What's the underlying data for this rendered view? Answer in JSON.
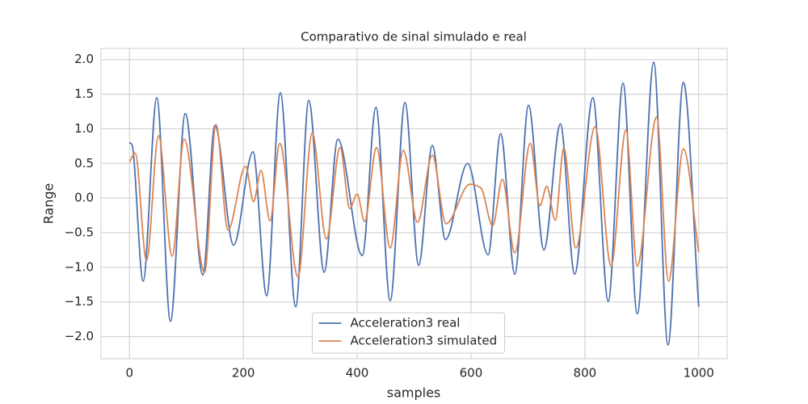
{
  "chart_data": {
    "type": "line",
    "title": "Comparativo de sinal simulado e real",
    "xlabel": "samples",
    "ylabel": "Range",
    "xlim": [
      -50,
      1050
    ],
    "ylim": [
      -2.32,
      2.16
    ],
    "xticks": [
      0,
      200,
      400,
      600,
      800,
      1000
    ],
    "yticks": [
      {
        "value": -2,
        "label": "−2.0"
      },
      {
        "value": -1.5,
        "label": "−1.5"
      },
      {
        "value": -1,
        "label": "−1.0"
      },
      {
        "value": -0.5,
        "label": "−0.5"
      },
      {
        "value": 0,
        "label": "0.0"
      },
      0.5,
      {
        "value": 1,
        "label": "1.0"
      },
      1.5,
      {
        "value": 2,
        "label": "2.0"
      }
    ],
    "grid": true,
    "legend": "lower center",
    "series": [
      {
        "name": "Acceleration3 real",
        "color": "#4c72b0",
        "x": [
          0,
          4,
          24,
          48,
          72,
          98,
          129,
          150,
          183,
          217,
          241,
          265,
          292,
          315,
          342,
          366,
          409,
          433,
          458,
          484,
          508,
          532,
          555,
          594,
          630,
          652,
          677,
          701,
          728,
          757,
          782,
          814,
          841,
          867,
          892,
          921,
          946,
          973,
          1000
        ],
        "values": [
          0.8,
          0.78,
          -1.2,
          1.45,
          -1.78,
          1.22,
          -1.11,
          1.05,
          -0.68,
          0.67,
          -1.41,
          1.52,
          -1.57,
          1.41,
          -1.07,
          0.85,
          -0.83,
          1.31,
          -1.48,
          1.38,
          -0.97,
          0.76,
          -0.6,
          0.5,
          -0.82,
          0.93,
          -1.1,
          1.34,
          -0.75,
          1.07,
          -1.1,
          1.45,
          -1.49,
          1.66,
          -1.67,
          1.96,
          -2.12,
          1.67,
          -1.57
        ]
      },
      {
        "name": "Acceleration3 simulated",
        "color": "#dd8452",
        "x": [
          0,
          10,
          30,
          51,
          75,
          96,
          132,
          152,
          173,
          204,
          218,
          231,
          247,
          264,
          296,
          321,
          346,
          370,
          387,
          400,
          413,
          434,
          458,
          481,
          506,
          532,
          556,
          598,
          617,
          638,
          655,
          677,
          704,
          721,
          733,
          748,
          763,
          784,
          818,
          846,
          872,
          892,
          926,
          947,
          973,
          1000
        ],
        "values": [
          0.52,
          0.65,
          -0.9,
          0.9,
          -0.84,
          0.85,
          -1.07,
          1.06,
          -0.46,
          0.46,
          -0.05,
          0.4,
          -0.33,
          0.79,
          -1.14,
          0.94,
          -0.59,
          0.73,
          -0.15,
          0.06,
          -0.34,
          0.73,
          -0.72,
          0.69,
          -0.35,
          0.62,
          -0.37,
          0.2,
          0.15,
          -0.4,
          0.27,
          -0.79,
          0.79,
          -0.11,
          0.17,
          -0.32,
          0.72,
          -0.72,
          1.03,
          -0.98,
          0.98,
          -0.98,
          1.17,
          -1.2,
          0.71,
          -0.78
        ]
      }
    ]
  }
}
